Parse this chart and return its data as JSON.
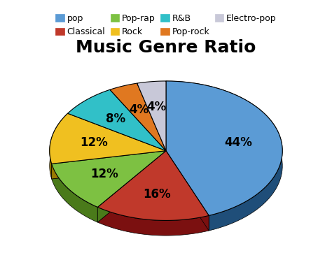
{
  "title": "Music Genre Ratio",
  "labels": [
    "pop",
    "Classical",
    "Pop-rap",
    "Rock",
    "R&B",
    "Pop-rock",
    "Electro-pop"
  ],
  "values": [
    44,
    16,
    12,
    12,
    8,
    4,
    4
  ],
  "colors": [
    "#5B9BD5",
    "#C0392B",
    "#7DC142",
    "#F0C020",
    "#31C0C8",
    "#E07820",
    "#C8C8D8"
  ],
  "dark_colors": [
    "#1F4E79",
    "#7B1010",
    "#4A7A1A",
    "#9A7A00",
    "#1A7A80",
    "#905010",
    "#888898"
  ],
  "startangle": 90,
  "background_color": "#FFFFFF",
  "title_fontsize": 18,
  "pct_fontsize": 12,
  "legend_fontsize": 9,
  "legend_labels_row1": [
    "pop",
    "Classical",
    "Pop-rap",
    "Rock"
  ],
  "legend_labels_row2": [
    "R&B",
    "Pop-rock",
    "Electro-pop"
  ]
}
